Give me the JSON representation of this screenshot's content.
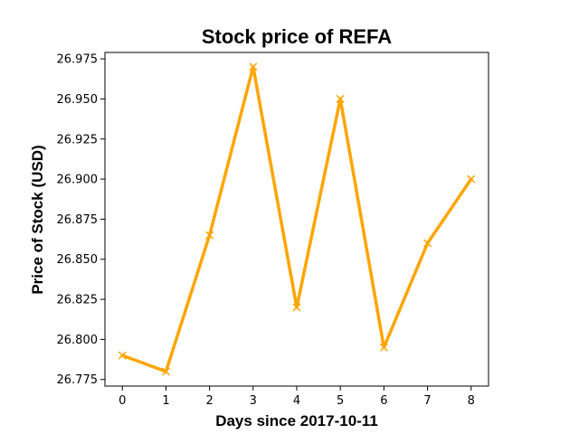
{
  "chart_data": {
    "type": "line",
    "title": "Stock price of REFA",
    "xlabel": "Days since 2017-10-11",
    "ylabel": "Price of Stock (USD)",
    "x": [
      0,
      1,
      2,
      3,
      4,
      5,
      6,
      7,
      8
    ],
    "series": [
      {
        "values": [
          26.79,
          26.78,
          26.865,
          26.97,
          26.82,
          26.95,
          26.795,
          26.86,
          26.9
        ],
        "color": "#FFA500",
        "marker": "x"
      }
    ],
    "xlim": [
      -0.4,
      8.4
    ],
    "ylim": [
      26.7709,
      26.979
    ],
    "x_ticks": [
      "0",
      "1",
      "2",
      "3",
      "4",
      "5",
      "6",
      "7",
      "8"
    ],
    "y_ticks": [
      "26.775",
      "26.800",
      "26.825",
      "26.850",
      "26.875",
      "26.900",
      "26.925",
      "26.950",
      "26.975"
    ],
    "grid": false
  }
}
